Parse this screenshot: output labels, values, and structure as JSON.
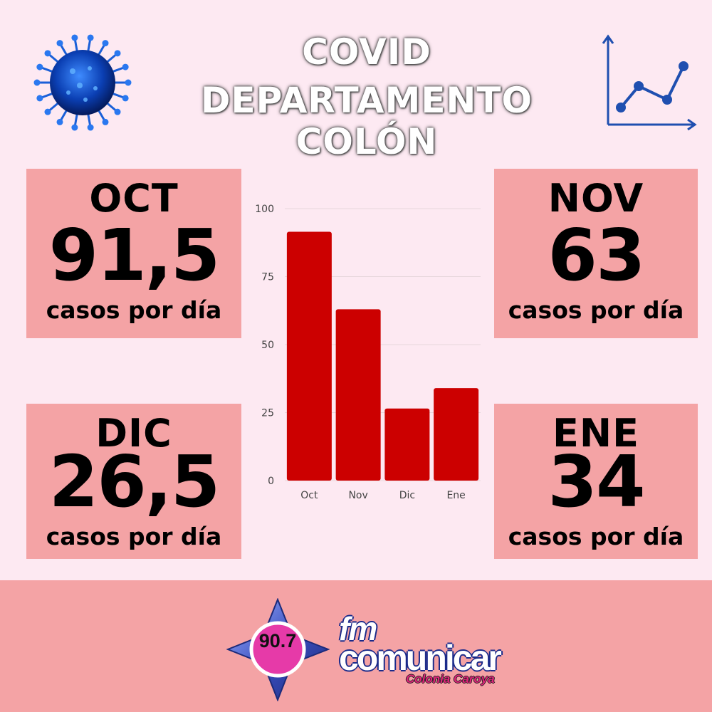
{
  "header": {
    "title_line1": "COVID",
    "title_line2": "DEPARTAMENTO COLÓN"
  },
  "icons": {
    "left": "coronavirus-icon",
    "right": "line-chart-icon"
  },
  "cards": [
    {
      "month": "OCT",
      "value": "91,5",
      "unit": "casos por día"
    },
    {
      "month": "NOV",
      "value": "63",
      "unit": "casos por día"
    },
    {
      "month": "DIC",
      "value": "26,5",
      "unit": "casos por día"
    },
    {
      "month": "ENE",
      "value": "34",
      "unit": "casos por día"
    }
  ],
  "chart_data": {
    "type": "bar",
    "categories": [
      "Oct",
      "Nov",
      "Dic",
      "Ene"
    ],
    "values": [
      91.5,
      63,
      26.5,
      34
    ],
    "ylim": [
      0,
      100
    ],
    "yticks": [
      0,
      25,
      50,
      75,
      100
    ],
    "bar_color": "#cc0000",
    "grid": true
  },
  "footer": {
    "frequency": "90.7",
    "brand_prefix": "fm",
    "brand_name": "comunicar",
    "city": "Colonia Caroya"
  },
  "colors": {
    "background": "#fde9f2",
    "card": "#f4a3a5",
    "footer": "#f4a3a5",
    "bar": "#cc0000",
    "icon_blue": "#1f4fb0"
  }
}
